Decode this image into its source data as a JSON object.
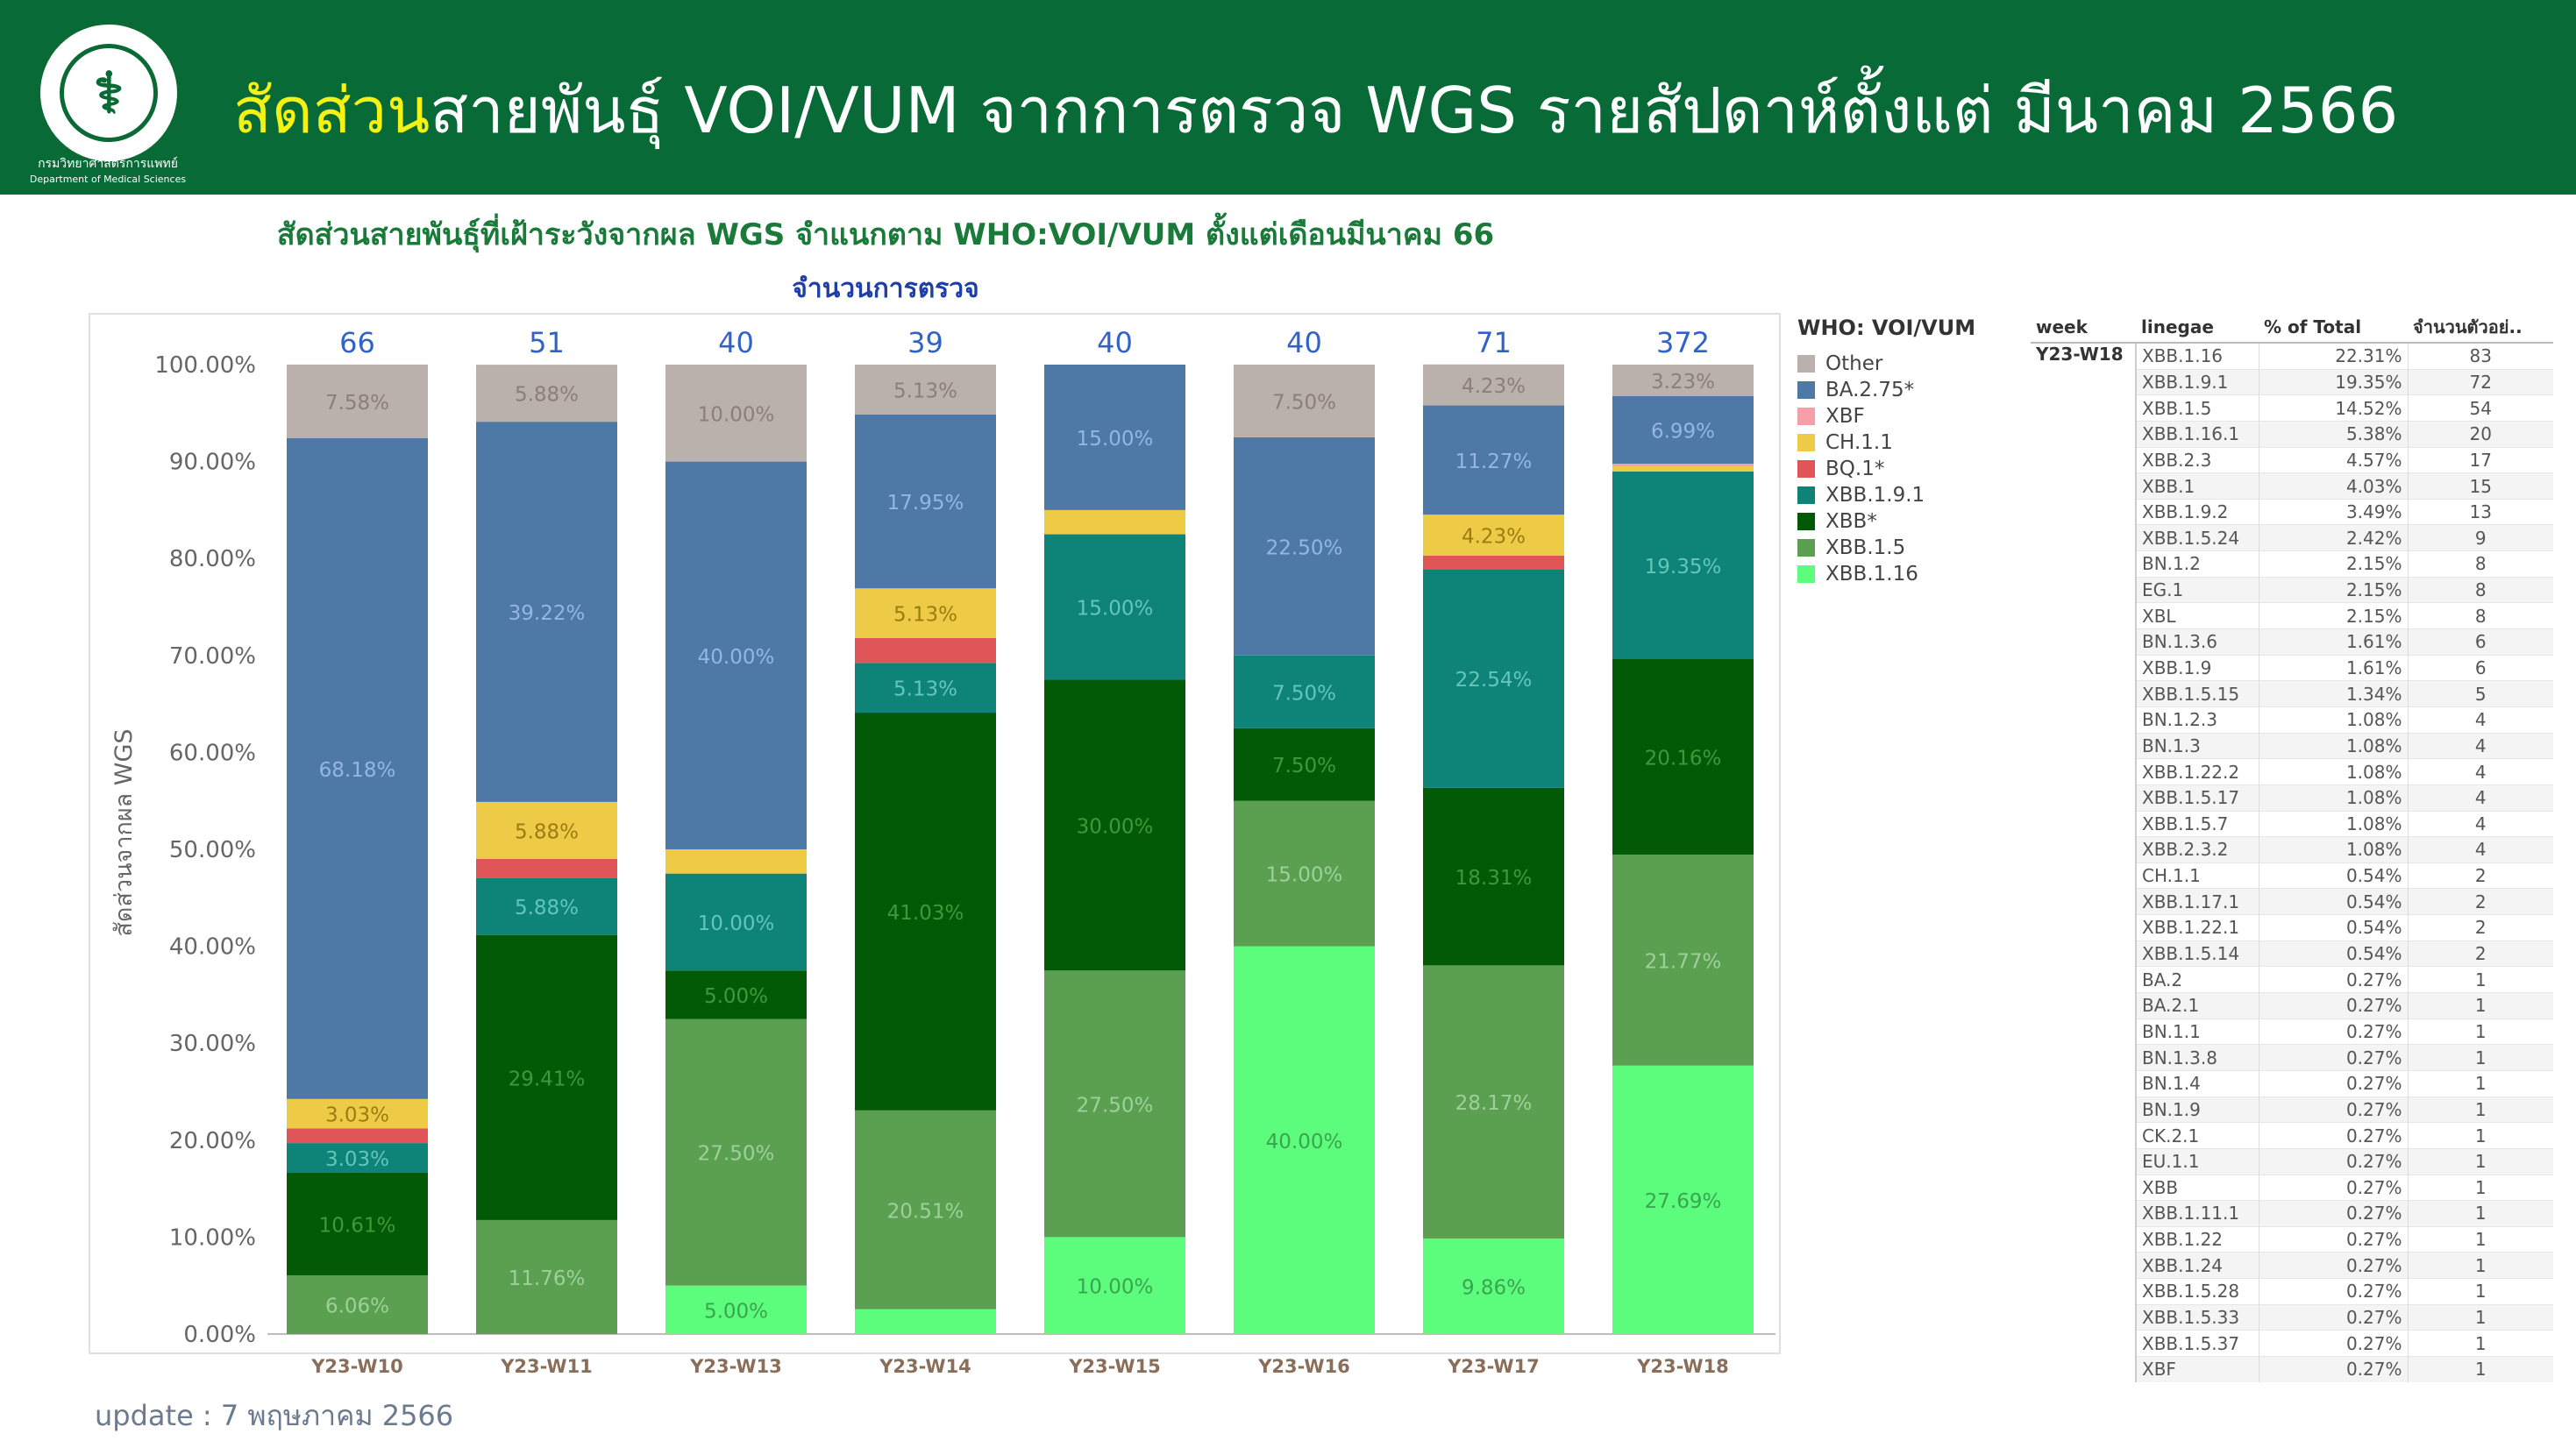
{
  "header": {
    "title_highlight": "สัดส่วน",
    "title_rest": "สายพันธุ์ VOI/VUM จากการตรวจ WGS รายสัปดาห์ตั้งแต่ มีนาคม 2566",
    "logo_caption_line1": "กรมวิทยาศาสตร์การแพทย์",
    "logo_caption_line2": "Department of Medical Sciences",
    "logo_icon": "ministry-seal-icon"
  },
  "chart_data": {
    "type": "bar",
    "title": "สัดส่วนสายพันธุ์ที่เฝ้าระวังจากผล WGS จำแนกตาม WHO:VOI/VUM  ตั้งแต่เดือนมีนาคม 66",
    "subtitle": "จำนวนการตรวจ",
    "ylabel": "สัดส่วนจากผล WGS",
    "xlabel": "",
    "ylim": [
      0,
      100
    ],
    "yticks": [
      "0.00%",
      "10.00%",
      "20.00%",
      "30.00%",
      "40.00%",
      "50.00%",
      "60.00%",
      "70.00%",
      "80.00%",
      "90.00%",
      "100.00%"
    ],
    "categories": [
      "Y23-W10",
      "Y23-W11",
      "Y23-W13",
      "Y23-W14",
      "Y23-W15",
      "Y23-W16",
      "Y23-W17",
      "Y23-W18"
    ],
    "totals": [
      "66",
      "51",
      "40",
      "39",
      "40",
      "40",
      "71",
      "372"
    ],
    "legend_title": "WHO: VOI/VUM",
    "legend_position": "right",
    "grid": false,
    "series": [
      {
        "name": "XBB.1.16",
        "color": "#5cfc7c",
        "values": [
          0,
          0,
          5.0,
          2.56,
          10.0,
          40.0,
          9.86,
          27.69
        ],
        "labels": [
          "",
          "",
          "5.00%",
          "",
          "10.00%",
          "40.00%",
          "9.86%",
          "27.69%"
        ]
      },
      {
        "name": "XBB.1.5",
        "color": "#5aa050",
        "values": [
          6.06,
          11.76,
          27.5,
          20.51,
          27.5,
          15.0,
          28.17,
          21.77
        ],
        "labels": [
          "6.06%",
          "11.76%",
          "27.50%",
          "20.51%",
          "27.50%",
          "15.00%",
          "28.17%",
          "21.77%"
        ]
      },
      {
        "name": "XBB*",
        "color": "#035a06",
        "values": [
          10.61,
          29.41,
          5.0,
          41.03,
          30.0,
          7.5,
          18.31,
          20.16
        ],
        "labels": [
          "10.61%",
          "29.41%",
          "5.00%",
          "41.03%",
          "30.00%",
          "7.50%",
          "18.31%",
          "20.16%"
        ]
      },
      {
        "name": "XBB.1.9.1",
        "color": "#0e8377",
        "values": [
          3.03,
          5.88,
          10.0,
          5.13,
          15.0,
          7.5,
          22.54,
          19.35
        ],
        "labels": [
          "3.03%",
          "5.88%",
          "10.00%",
          "5.13%",
          "15.00%",
          "7.50%",
          "22.54%",
          "19.35%"
        ]
      },
      {
        "name": "BQ.1*",
        "color": "#e05558",
        "values": [
          1.52,
          1.96,
          0,
          2.56,
          0,
          0,
          1.41,
          0
        ],
        "labels": [
          "",
          "",
          "",
          "",
          "",
          "",
          "",
          ""
        ]
      },
      {
        "name": "CH.1.1",
        "color": "#eecb47",
        "values": [
          3.03,
          5.88,
          2.5,
          5.13,
          2.5,
          0,
          4.23,
          0.54
        ],
        "labels": [
          "3.03%",
          "5.88%",
          "",
          "5.13%",
          "",
          "",
          "4.23%",
          ""
        ]
      },
      {
        "name": "XBF",
        "color": "#f5a0a8",
        "values": [
          0,
          0,
          0,
          0,
          0,
          0,
          0,
          0.27
        ],
        "labels": [
          "",
          "",
          "",
          "",
          "",
          "",
          "",
          ""
        ]
      },
      {
        "name": "BA.2.75*",
        "color": "#4e79a7",
        "values": [
          68.18,
          39.22,
          40.0,
          17.95,
          15.0,
          22.5,
          11.27,
          6.99
        ],
        "labels": [
          "68.18%",
          "39.22%",
          "40.00%",
          "17.95%",
          "15.00%",
          "22.50%",
          "11.27%",
          "6.99%"
        ]
      },
      {
        "name": "Other",
        "color": "#bab0ac",
        "values": [
          7.58,
          5.88,
          10.0,
          5.13,
          0,
          7.5,
          4.23,
          3.23
        ],
        "labels": [
          "7.58%",
          "5.88%",
          "10.00%",
          "5.13%",
          "",
          "7.50%",
          "4.23%",
          "3.23%"
        ]
      }
    ],
    "legend_order": [
      "Other",
      "BA.2.75*",
      "XBF",
      "CH.1.1",
      "BQ.1*",
      "XBB.1.9.1",
      "XBB*",
      "XBB.1.5",
      "XBB.1.16"
    ]
  },
  "table": {
    "headers": [
      "week",
      "linegae",
      "% of Total",
      "จำนวนตัวอย่.."
    ],
    "week": "Y23-W18",
    "rows": [
      [
        "XBB.1.16",
        "22.31%",
        "83"
      ],
      [
        "XBB.1.9.1",
        "19.35%",
        "72"
      ],
      [
        "XBB.1.5",
        "14.52%",
        "54"
      ],
      [
        "XBB.1.16.1",
        "5.38%",
        "20"
      ],
      [
        "XBB.2.3",
        "4.57%",
        "17"
      ],
      [
        "XBB.1",
        "4.03%",
        "15"
      ],
      [
        "XBB.1.9.2",
        "3.49%",
        "13"
      ],
      [
        "XBB.1.5.24",
        "2.42%",
        "9"
      ],
      [
        "BN.1.2",
        "2.15%",
        "8"
      ],
      [
        "EG.1",
        "2.15%",
        "8"
      ],
      [
        "XBL",
        "2.15%",
        "8"
      ],
      [
        "BN.1.3.6",
        "1.61%",
        "6"
      ],
      [
        "XBB.1.9",
        "1.61%",
        "6"
      ],
      [
        "XBB.1.5.15",
        "1.34%",
        "5"
      ],
      [
        "BN.1.2.3",
        "1.08%",
        "4"
      ],
      [
        "BN.1.3",
        "1.08%",
        "4"
      ],
      [
        "XBB.1.22.2",
        "1.08%",
        "4"
      ],
      [
        "XBB.1.5.17",
        "1.08%",
        "4"
      ],
      [
        "XBB.1.5.7",
        "1.08%",
        "4"
      ],
      [
        "XBB.2.3.2",
        "1.08%",
        "4"
      ],
      [
        "CH.1.1",
        "0.54%",
        "2"
      ],
      [
        "XBB.1.17.1",
        "0.54%",
        "2"
      ],
      [
        "XBB.1.22.1",
        "0.54%",
        "2"
      ],
      [
        "XBB.1.5.14",
        "0.54%",
        "2"
      ],
      [
        "BA.2",
        "0.27%",
        "1"
      ],
      [
        "BA.2.1",
        "0.27%",
        "1"
      ],
      [
        "BN.1.1",
        "0.27%",
        "1"
      ],
      [
        "BN.1.3.8",
        "0.27%",
        "1"
      ],
      [
        "BN.1.4",
        "0.27%",
        "1"
      ],
      [
        "BN.1.9",
        "0.27%",
        "1"
      ],
      [
        "CK.2.1",
        "0.27%",
        "1"
      ],
      [
        "EU.1.1",
        "0.27%",
        "1"
      ],
      [
        "XBB",
        "0.27%",
        "1"
      ],
      [
        "XBB.1.11.1",
        "0.27%",
        "1"
      ],
      [
        "XBB.1.22",
        "0.27%",
        "1"
      ],
      [
        "XBB.1.24",
        "0.27%",
        "1"
      ],
      [
        "XBB.1.5.28",
        "0.27%",
        "1"
      ],
      [
        "XBB.1.5.33",
        "0.27%",
        "1"
      ],
      [
        "XBB.1.5.37",
        "0.27%",
        "1"
      ],
      [
        "XBF",
        "0.27%",
        "1"
      ]
    ]
  },
  "footer": {
    "update_text": "update : 7 พฤษภาคม 2566"
  }
}
